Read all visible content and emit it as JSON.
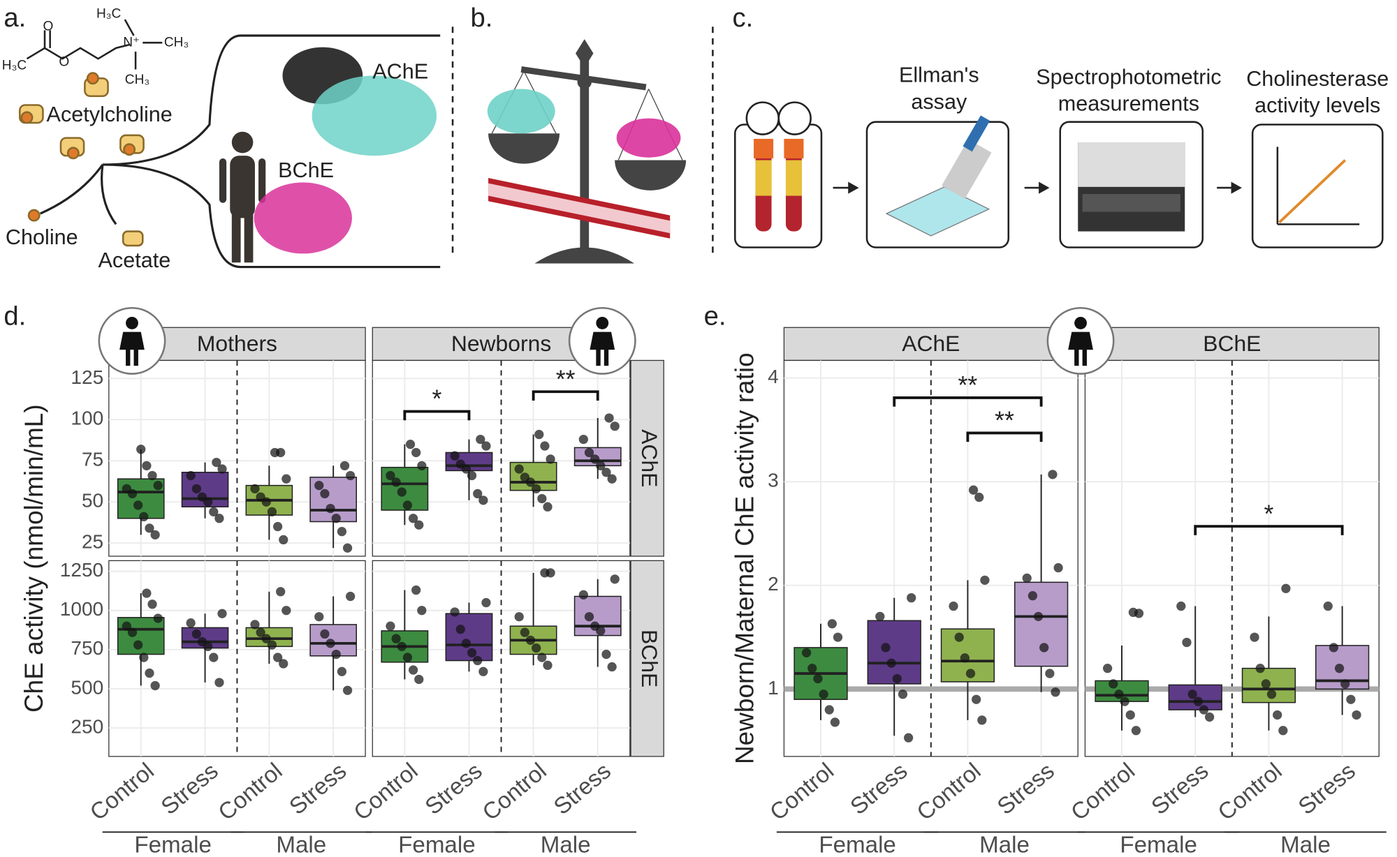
{
  "panels": {
    "a": {
      "label": "a.",
      "formula": [
        "H₃C",
        "CH₃",
        "CH₃",
        "N⁺",
        "O",
        "O",
        "H₃C"
      ],
      "molecule": "Acetylcholine",
      "enzymes": [
        "AChE",
        "BChE"
      ],
      "products": [
        "Choline",
        "Acetate"
      ]
    },
    "b": {
      "label": "b."
    },
    "c": {
      "label": "c.",
      "steps": [
        [
          "Ellman's",
          "assay"
        ],
        [
          "Spectrophotometric",
          "measurements"
        ],
        [
          "Cholinesterase",
          "activity levels"
        ]
      ]
    }
  },
  "chart_data": [
    {
      "type": "box",
      "label": "d.",
      "ylabel": "ChE activity (nmol/min/mL)",
      "columns": [
        "Mothers",
        "Newborns"
      ],
      "rows": [
        {
          "name": "AChE",
          "ylim": [
            17,
            136
          ],
          "yticks": [
            25,
            50,
            75,
            100,
            125
          ]
        },
        {
          "name": "BChE",
          "ylim": [
            68,
            1318
          ],
          "yticks": [
            250,
            500,
            750,
            1000,
            1250
          ]
        }
      ],
      "categories": [
        "Control",
        "Stress",
        "Control",
        "Stress"
      ],
      "groups": [
        "Female",
        "Male"
      ],
      "colors": [
        "#3d8b40",
        "#5e3b87",
        "#8fb24f",
        "#b79cca"
      ],
      "facets": [
        [
          {
            "boxes": [
              {
                "min": 30,
                "q1": 40,
                "median": 56,
                "q3": 64,
                "max": 82,
                "points": [
                  30,
                  34,
                  41,
                  48,
                  55,
                  58,
                  60,
                  66,
                  72,
                  82
                ]
              },
              {
                "min": 40,
                "q1": 47,
                "median": 52,
                "q3": 68,
                "max": 74,
                "points": [
                  40,
                  44,
                  50,
                  53,
                  58,
                  66,
                  70,
                  74
                ]
              },
              {
                "min": 27,
                "q1": 42,
                "median": 51,
                "q3": 60,
                "max": 72,
                "points": [
                  27,
                  35,
                  44,
                  50,
                  53,
                  58,
                  64,
                  80,
                  80
                ]
              },
              {
                "min": 22,
                "q1": 38,
                "median": 45,
                "q3": 65,
                "max": 72,
                "points": [
                  22,
                  32,
                  40,
                  46,
                  55,
                  60,
                  66,
                  72
                ]
              }
            ],
            "brackets": []
          },
          {
            "boxes": [
              {
                "min": 36,
                "q1": 45,
                "median": 61,
                "q3": 71,
                "max": 85,
                "points": [
                  36,
                  40,
                  48,
                  56,
                  62,
                  66,
                  72,
                  80,
                  85
                ]
              },
              {
                "min": 51,
                "q1": 69,
                "median": 72,
                "q3": 80,
                "max": 88,
                "points": [
                  51,
                  55,
                  66,
                  70,
                  73,
                  78,
                  84,
                  88
                ]
              },
              {
                "min": 47,
                "q1": 57,
                "median": 62,
                "q3": 74,
                "max": 91,
                "points": [
                  47,
                  52,
                  58,
                  62,
                  65,
                  70,
                  76,
                  84,
                  91
                ]
              },
              {
                "min": 64,
                "q1": 72,
                "median": 75,
                "q3": 83,
                "max": 101,
                "points": [
                  64,
                  68,
                  72,
                  76,
                  80,
                  88,
                  96,
                  101
                ]
              }
            ],
            "brackets": [
              {
                "from": 0,
                "to": 1,
                "y": 105,
                "label": "*"
              },
              {
                "from": 2,
                "to": 3,
                "y": 117,
                "label": "**"
              }
            ]
          }
        ],
        [
          {
            "boxes": [
              {
                "min": 520,
                "q1": 720,
                "median": 880,
                "q3": 955,
                "max": 1110,
                "points": [
                  520,
                  600,
                  700,
                  780,
                  860,
                  900,
                  950,
                  1040,
                  1110
                ]
              },
              {
                "min": 540,
                "q1": 760,
                "median": 800,
                "q3": 890,
                "max": 980,
                "points": [
                  540,
                  700,
                  770,
                  800,
                  850,
                  920,
                  980
                ]
              },
              {
                "min": 660,
                "q1": 770,
                "median": 820,
                "q3": 890,
                "max": 1120,
                "points": [
                  660,
                  700,
                  780,
                  820,
                  860,
                  910,
                  1000,
                  1120
                ]
              },
              {
                "min": 490,
                "q1": 710,
                "median": 790,
                "q3": 910,
                "max": 1090,
                "points": [
                  490,
                  610,
                  720,
                  790,
                  850,
                  960,
                  1090
                ]
              }
            ],
            "brackets": []
          },
          {
            "boxes": [
              {
                "min": 560,
                "q1": 670,
                "median": 770,
                "q3": 870,
                "max": 1130,
                "points": [
                  560,
                  620,
                  700,
                  770,
                  820,
                  900,
                  1000,
                  1130
                ]
              },
              {
                "min": 610,
                "q1": 680,
                "median": 780,
                "q3": 980,
                "max": 1050,
                "points": [
                  610,
                  680,
                  730,
                  790,
                  880,
                  990,
                  1050
                ]
              },
              {
                "min": 650,
                "q1": 720,
                "median": 810,
                "q3": 900,
                "max": 1240,
                "points": [
                  650,
                  700,
                  760,
                  810,
                  860,
                  960,
                  1240,
                  1240
                ]
              },
              {
                "min": 640,
                "q1": 840,
                "median": 900,
                "q3": 1090,
                "max": 1200,
                "points": [
                  640,
                  720,
                  870,
                  900,
                  960,
                  1100,
                  1200
                ]
              }
            ],
            "brackets": []
          }
        ]
      ]
    },
    {
      "type": "box",
      "label": "e.",
      "ylabel": "Newborn/Maternal ChE activity ratio",
      "columns": [
        "AChE",
        "BChE"
      ],
      "rows": [
        {
          "ylim": [
            0.35,
            4.17
          ],
          "yticks": [
            1,
            2,
            3,
            4
          ]
        }
      ],
      "reference_line": 1,
      "categories": [
        "Control",
        "Stress",
        "Control",
        "Stress"
      ],
      "groups": [
        "Female",
        "Male"
      ],
      "colors": [
        "#3d8b40",
        "#5e3b87",
        "#8fb24f",
        "#b79cca"
      ],
      "facets": [
        [
          {
            "boxes": [
              {
                "min": 0.7,
                "q1": 0.9,
                "median": 1.15,
                "q3": 1.4,
                "max": 1.63,
                "points": [
                  0.68,
                  0.8,
                  0.95,
                  1.1,
                  1.2,
                  1.35,
                  1.5,
                  1.63
                ]
              },
              {
                "min": 0.55,
                "q1": 1.05,
                "median": 1.25,
                "q3": 1.66,
                "max": 1.88,
                "points": [
                  0.53,
                  0.95,
                  1.1,
                  1.25,
                  1.4,
                  1.7,
                  1.88
                ]
              },
              {
                "min": 0.7,
                "q1": 1.07,
                "median": 1.27,
                "q3": 1.58,
                "max": 2.05,
                "points": [
                  0.7,
                  0.9,
                  1.15,
                  1.3,
                  1.5,
                  1.8,
                  2.05,
                  2.85,
                  2.92
                ]
              },
              {
                "min": 0.97,
                "q1": 1.22,
                "median": 1.7,
                "q3": 2.03,
                "max": 3.07,
                "points": [
                  0.97,
                  1.15,
                  1.4,
                  1.7,
                  1.9,
                  2.07,
                  2.17,
                  3.07
                ]
              }
            ],
            "brackets": [
              {
                "from": 1,
                "to": 3,
                "y": 3.81,
                "label": "**"
              },
              {
                "from": 2,
                "to": 3,
                "y": 3.47,
                "label": "**"
              }
            ]
          },
          {
            "boxes": [
              {
                "min": 0.6,
                "q1": 0.88,
                "median": 0.94,
                "q3": 1.08,
                "max": 1.42,
                "points": [
                  0.6,
                  0.75,
                  0.88,
                  0.95,
                  1.05,
                  1.2,
                  1.73,
                  1.74
                ]
              },
              {
                "min": 0.73,
                "q1": 0.8,
                "median": 0.88,
                "q3": 1.04,
                "max": 1.8,
                "points": [
                  0.73,
                  0.8,
                  0.88,
                  0.95,
                  1.45,
                  1.8
                ]
              },
              {
                "min": 0.6,
                "q1": 0.87,
                "median": 1.0,
                "q3": 1.2,
                "max": 1.7,
                "points": [
                  0.6,
                  0.75,
                  0.95,
                  1.05,
                  1.2,
                  1.5,
                  1.97
                ]
              },
              {
                "min": 0.75,
                "q1": 1.0,
                "median": 1.08,
                "q3": 1.42,
                "max": 1.8,
                "points": [
                  0.75,
                  0.9,
                  1.05,
                  1.2,
                  1.4,
                  1.8
                ]
              }
            ],
            "brackets": [
              {
                "from": 1,
                "to": 3,
                "y": 2.57,
                "label": "*"
              }
            ]
          }
        ]
      ]
    }
  ]
}
